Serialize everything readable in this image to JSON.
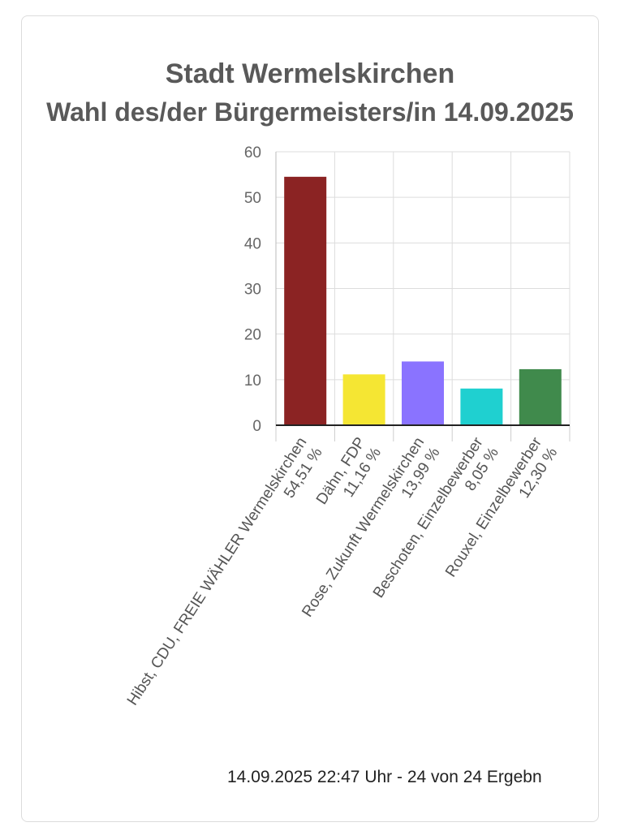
{
  "chart_data": {
    "type": "bar",
    "title": "Stadt Wermelskirchen",
    "subtitle": "Wahl des/der Bürgermeisters/in 14.09.2025",
    "ylim": [
      0,
      60
    ],
    "yticks": [
      0,
      10,
      20,
      30,
      40,
      50,
      60
    ],
    "categories": [
      {
        "name": "Hibst, CDU, FREIE WÄHLER Wermelskirchen",
        "pct_label": "54,51 %",
        "value": 54.51,
        "color": "#8b2323"
      },
      {
        "name": "Dähn, FDP",
        "pct_label": "11,16 %",
        "value": 11.16,
        "color": "#f5e633"
      },
      {
        "name": "Rose, Zukunft Wermelskirchen",
        "pct_label": "13,99 %",
        "value": 13.99,
        "color": "#8a73ff"
      },
      {
        "name": "Beschoten, Einzelbewerber",
        "pct_label": "8,05 %",
        "value": 8.05,
        "color": "#1fd0d0"
      },
      {
        "name": "Rouxel, Einzelbewerber",
        "pct_label": "12,30 %",
        "value": 12.3,
        "color": "#408a4c"
      }
    ]
  },
  "footer": "14.09.2025 22:47 Uhr - 24 von 24 Ergebn"
}
